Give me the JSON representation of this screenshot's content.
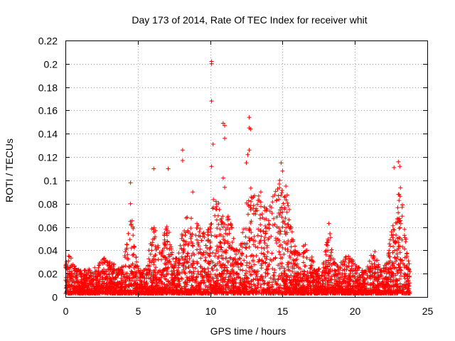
{
  "chart_data": {
    "type": "scatter",
    "title": "Day 173 of 2014, Rate Of TEC Index for receiver whit",
    "xlabel": "GPS time / hours",
    "ylabel": "ROTI / TECUs",
    "xlim": [
      0,
      25
    ],
    "ylim": [
      0,
      0.22
    ],
    "xticks": [
      "0",
      "5",
      "10",
      "15",
      "20",
      "25"
    ],
    "yticks": [
      "0",
      "0.02",
      "0.04",
      "0.06",
      "0.08",
      "0.1",
      "0.12",
      "0.14",
      "0.16",
      "0.18",
      "0.2",
      "0.22"
    ],
    "grid": true,
    "marker": "+",
    "color": "#ff0000",
    "x_range_of_data": [
      0,
      23.8
    ],
    "peaks": [
      {
        "x": 4.5,
        "y": 0.098
      },
      {
        "x": 4.5,
        "y": 0.08
      },
      {
        "x": 6.1,
        "y": 0.11
      },
      {
        "x": 7.1,
        "y": 0.11
      },
      {
        "x": 8.1,
        "y": 0.126
      },
      {
        "x": 8.1,
        "y": 0.117
      },
      {
        "x": 8.8,
        "y": 0.09
      },
      {
        "x": 10.1,
        "y": 0.202
      },
      {
        "x": 10.1,
        "y": 0.2
      },
      {
        "x": 10.1,
        "y": 0.168
      },
      {
        "x": 10.2,
        "y": 0.131
      },
      {
        "x": 10.1,
        "y": 0.112
      },
      {
        "x": 10.9,
        "y": 0.149
      },
      {
        "x": 11.0,
        "y": 0.147
      },
      {
        "x": 11.0,
        "y": 0.136
      },
      {
        "x": 10.9,
        "y": 0.102
      },
      {
        "x": 11.0,
        "y": 0.094
      },
      {
        "x": 12.7,
        "y": 0.154
      },
      {
        "x": 12.7,
        "y": 0.145
      },
      {
        "x": 12.8,
        "y": 0.144
      },
      {
        "x": 12.6,
        "y": 0.122
      },
      {
        "x": 12.5,
        "y": 0.115
      },
      {
        "x": 12.7,
        "y": 0.126
      },
      {
        "x": 13.5,
        "y": 0.09
      },
      {
        "x": 14.9,
        "y": 0.115
      },
      {
        "x": 15.0,
        "y": 0.108
      },
      {
        "x": 14.8,
        "y": 0.1
      },
      {
        "x": 18.2,
        "y": 0.063
      },
      {
        "x": 22.7,
        "y": 0.111
      },
      {
        "x": 23.0,
        "y": 0.116
      },
      {
        "x": 23.1,
        "y": 0.112
      },
      {
        "x": 23.0,
        "y": 0.088
      }
    ]
  }
}
